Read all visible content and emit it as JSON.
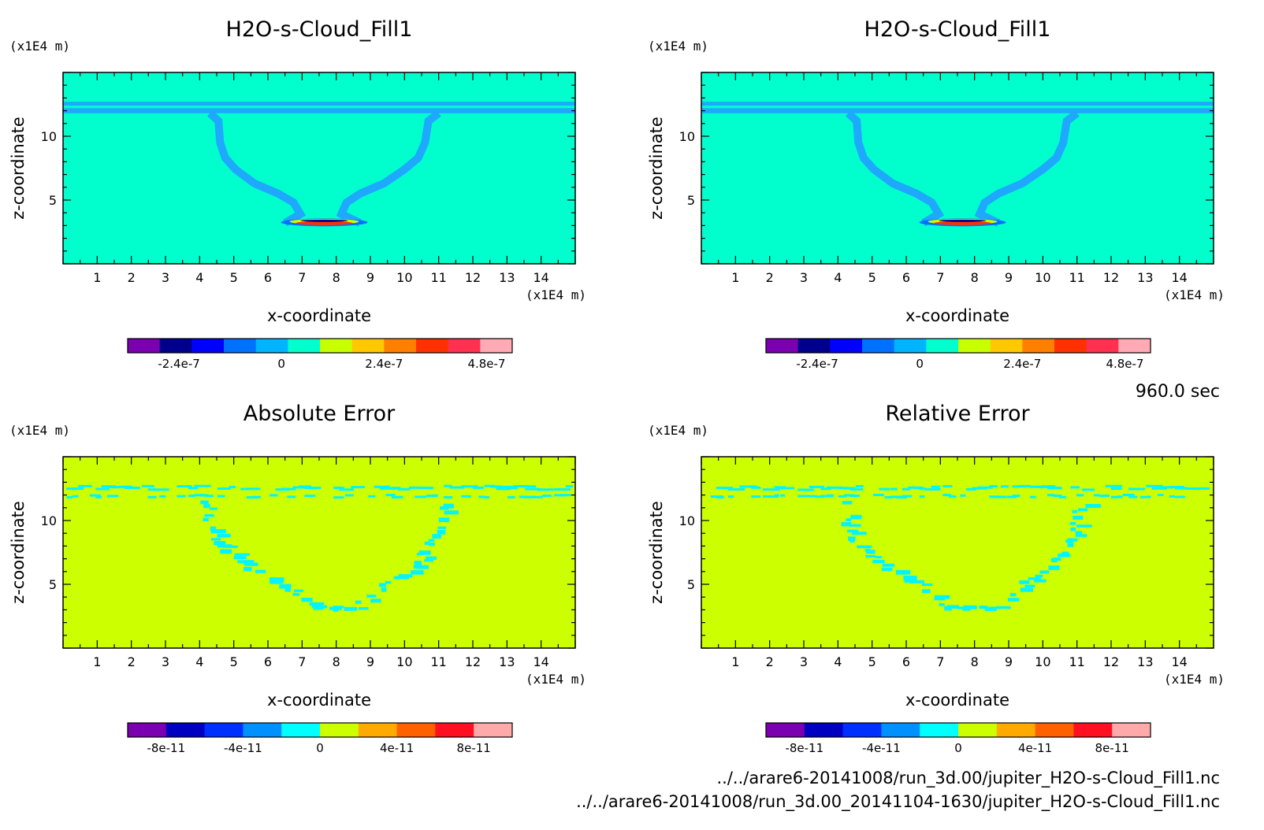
{
  "time_label": "960.0 sec",
  "file_paths": [
    "../../arare6-20141008/run_3d.00/jupiter_H2O-s-Cloud_Fill1.nc",
    "../../arare6-20141008/run_3d.00_20141104-1630/jupiter_H2O-s-Cloud_Fill1.nc"
  ],
  "chart_data": [
    {
      "type": "heatmap",
      "title": "H2O-s-Cloud_Fill1",
      "xlabel": "x-coordinate",
      "ylabel": "z-coordinate",
      "x_unit": "(x1E4 m)",
      "y_unit": "(x1E4 m)",
      "xlim": [
        0,
        15
      ],
      "ylim": [
        0,
        15
      ],
      "x_ticks": [
        1,
        2,
        3,
        4,
        5,
        6,
        7,
        8,
        9,
        10,
        11,
        12,
        13,
        14
      ],
      "y_ticks": [
        5,
        10
      ],
      "background_color": "#00FFCC",
      "feature_color": "#1EA8FF",
      "colorbar": {
        "colors": [
          "#7B00B0",
          "#00008C",
          "#0000FF",
          "#0070FF",
          "#00B4FF",
          "#00FFCC",
          "#C8FF00",
          "#FFC800",
          "#FF8000",
          "#FF3000",
          "#FF3050",
          "#FFAAB4"
        ],
        "tick_labels": [
          "-2.4e-7",
          "0",
          "2.4e-7",
          "4.8e-7"
        ],
        "tick_values": [
          -2.4e-07,
          0,
          2.4e-07,
          4.8e-07
        ],
        "range": [
          -3.6e-07,
          5.4e-07
        ]
      }
    },
    {
      "type": "heatmap",
      "title": "H2O-s-Cloud_Fill1",
      "xlabel": "x-coordinate",
      "ylabel": "z-coordinate",
      "x_unit": "(x1E4 m)",
      "y_unit": "(x1E4 m)",
      "xlim": [
        0,
        15
      ],
      "ylim": [
        0,
        15
      ],
      "x_ticks": [
        1,
        2,
        3,
        4,
        5,
        6,
        7,
        8,
        9,
        10,
        11,
        12,
        13,
        14
      ],
      "y_ticks": [
        5,
        10
      ],
      "background_color": "#00FFCC",
      "feature_color": "#1EA8FF",
      "colorbar": {
        "colors": [
          "#7B00B0",
          "#00008C",
          "#0000FF",
          "#0070FF",
          "#00B4FF",
          "#00FFCC",
          "#C8FF00",
          "#FFC800",
          "#FF8000",
          "#FF3000",
          "#FF3050",
          "#FFAAB4"
        ],
        "tick_labels": [
          "-2.4e-7",
          "0",
          "2.4e-7",
          "4.8e-7"
        ],
        "tick_values": [
          -2.4e-07,
          0,
          2.4e-07,
          4.8e-07
        ],
        "range": [
          -3.6e-07,
          5.4e-07
        ]
      }
    },
    {
      "type": "heatmap",
      "title": "Absolute Error",
      "xlabel": "x-coordinate",
      "ylabel": "z-coordinate",
      "x_unit": "(x1E4 m)",
      "y_unit": "(x1E4 m)",
      "xlim": [
        0,
        15
      ],
      "ylim": [
        0,
        15
      ],
      "x_ticks": [
        1,
        2,
        3,
        4,
        5,
        6,
        7,
        8,
        9,
        10,
        11,
        12,
        13,
        14
      ],
      "y_ticks": [
        5,
        10
      ],
      "background_color": "#CCFF00",
      "feature_color": "#00F5FF",
      "colorbar": {
        "colors": [
          "#7B00B0",
          "#0000C0",
          "#0030FF",
          "#0090FF",
          "#00FFFF",
          "#CCFF00",
          "#FFAA00",
          "#FF6000",
          "#FF1020",
          "#FFAAAA"
        ],
        "tick_labels": [
          "-8e-11",
          "-4e-11",
          "0",
          "4e-11",
          "8e-11"
        ],
        "tick_values": [
          -8e-11,
          -4e-11,
          0,
          4e-11,
          8e-11
        ],
        "range": [
          -1e-10,
          1e-10
        ]
      }
    },
    {
      "type": "heatmap",
      "title": "Relative Error",
      "xlabel": "x-coordinate",
      "ylabel": "z-coordinate",
      "x_unit": "(x1E4 m)",
      "y_unit": "(x1E4 m)",
      "xlim": [
        0,
        15
      ],
      "ylim": [
        0,
        15
      ],
      "x_ticks": [
        1,
        2,
        3,
        4,
        5,
        6,
        7,
        8,
        9,
        10,
        11,
        12,
        13,
        14
      ],
      "y_ticks": [
        5,
        10
      ],
      "background_color": "#CCFF00",
      "feature_color": "#00F5FF",
      "colorbar": {
        "colors": [
          "#7B00B0",
          "#0000C0",
          "#0030FF",
          "#0090FF",
          "#00FFFF",
          "#CCFF00",
          "#FFAA00",
          "#FF6000",
          "#FF1020",
          "#FFAAAA"
        ],
        "tick_labels": [
          "-8e-11",
          "-4e-11",
          "0",
          "4e-11",
          "8e-11"
        ],
        "tick_values": [
          -8e-11,
          -4e-11,
          0,
          4e-11,
          8e-11
        ],
        "range": [
          -1e-10,
          1e-10
        ]
      }
    }
  ]
}
